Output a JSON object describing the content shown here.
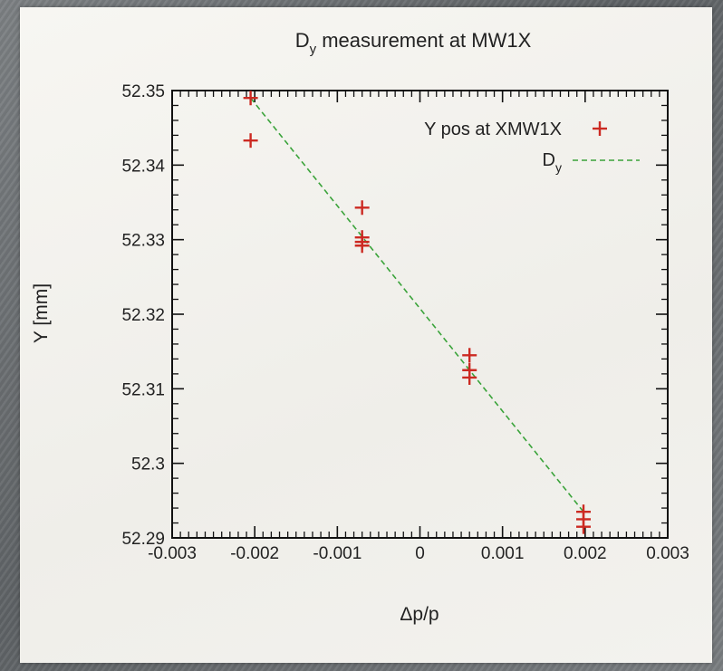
{
  "chart_data": {
    "type": "scatter",
    "title": "D",
    "title_sub": "y",
    "title_rest": " measurement at MW1X",
    "xlabel": "Δp/p",
    "ylabel": "Y [mm]",
    "xlim": [
      -0.003,
      0.003
    ],
    "ylim": [
      52.29,
      52.35
    ],
    "x_ticks": [
      -0.003,
      -0.002,
      -0.001,
      0,
      0.001,
      0.002,
      0.003
    ],
    "x_tick_labels": [
      "-0.003",
      "-0.002",
      "-0.001",
      "0",
      "0.001",
      "0.002",
      "0.003"
    ],
    "y_ticks": [
      52.29,
      52.3,
      52.31,
      52.32,
      52.33,
      52.34,
      52.35
    ],
    "y_tick_labels": [
      "52.29",
      "52.3",
      "52.31",
      "52.32",
      "52.33",
      "52.34",
      "52.35"
    ],
    "grid": false,
    "legend_position": "top-right",
    "series": [
      {
        "name": "Y pos at XMW1X",
        "kind": "points",
        "marker": "plus",
        "color": "#cc2a22",
        "x": [
          -0.00205,
          -0.00205,
          -0.0007,
          -0.0007,
          -0.0007,
          -0.0007,
          0.0006,
          0.0006,
          0.0006,
          0.00198,
          0.00198,
          0.00198
        ],
        "y": [
          52.349,
          52.3433,
          52.3343,
          52.3303,
          52.3297,
          52.3292,
          52.3145,
          52.3125,
          52.3115,
          52.2935,
          52.2925,
          52.2915
        ]
      },
      {
        "name": "D",
        "name_sub": "y",
        "kind": "line",
        "dash": true,
        "color": "#3aa33a",
        "x": [
          -0.00205,
          0.00198
        ],
        "y": [
          52.349,
          52.2935
        ]
      }
    ]
  }
}
